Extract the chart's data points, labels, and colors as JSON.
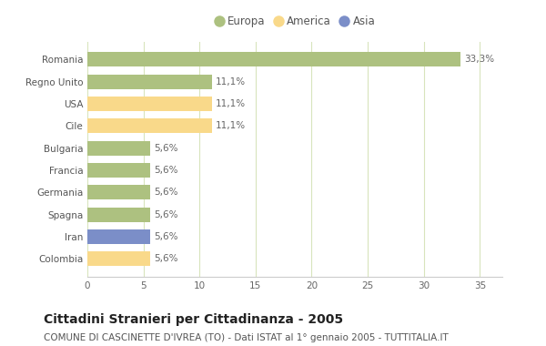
{
  "categories": [
    "Romania",
    "Regno Unito",
    "USA",
    "Cile",
    "Bulgaria",
    "Francia",
    "Germania",
    "Spagna",
    "Iran",
    "Colombia"
  ],
  "values": [
    33.3,
    11.1,
    11.1,
    11.1,
    5.6,
    5.6,
    5.6,
    5.6,
    5.6,
    5.6
  ],
  "labels": [
    "33,3%",
    "11,1%",
    "11,1%",
    "11,1%",
    "5,6%",
    "5,6%",
    "5,6%",
    "5,6%",
    "5,6%",
    "5,6%"
  ],
  "colors": [
    "#adc180",
    "#adc180",
    "#f9d98a",
    "#f9d98a",
    "#adc180",
    "#adc180",
    "#adc180",
    "#adc180",
    "#7b8ec8",
    "#f9d98a"
  ],
  "legend": [
    {
      "label": "Europa",
      "color": "#adc180"
    },
    {
      "label": "America",
      "color": "#f9d98a"
    },
    {
      "label": "Asia",
      "color": "#7b8ec8"
    }
  ],
  "title": "Cittadini Stranieri per Cittadinanza - 2005",
  "subtitle": "COMUNE DI CASCINETTE D'IVREA (TO) - Dati ISTAT al 1° gennaio 2005 - TUTTITALIA.IT",
  "xlim": [
    0,
    37
  ],
  "xticks": [
    0,
    5,
    10,
    15,
    20,
    25,
    30,
    35
  ],
  "background_color": "#ffffff",
  "plot_bg_color": "#ffffff",
  "grid_color": "#d8e4bc",
  "bar_height": 0.65,
  "title_fontsize": 10,
  "subtitle_fontsize": 7.5,
  "label_fontsize": 7.5,
  "tick_fontsize": 7.5,
  "legend_fontsize": 8.5
}
